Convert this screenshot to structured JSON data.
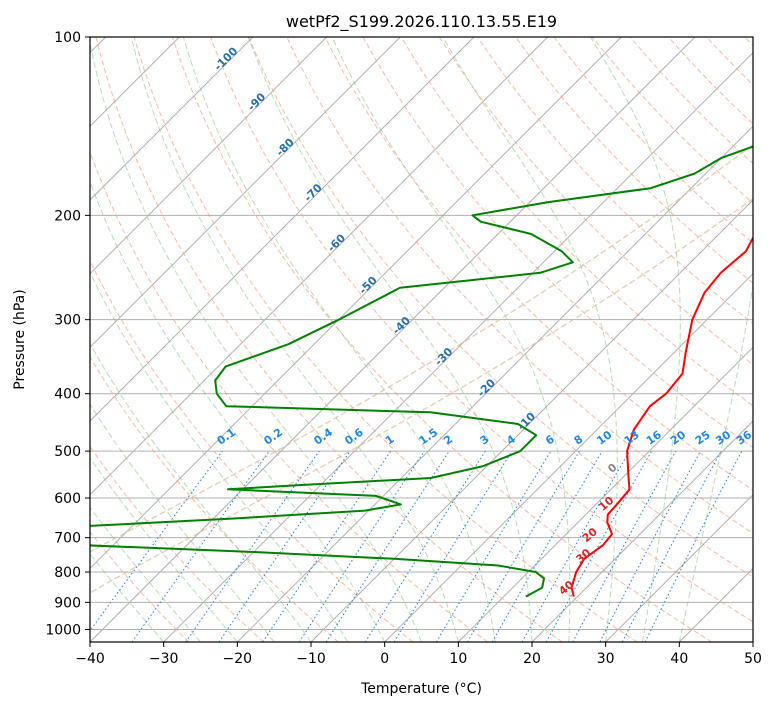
{
  "chart_data": {
    "type": "line",
    "title": "wetPf2_S199.2026.110.13.55.E19",
    "xlabel": "Temperature (°C)",
    "ylabel": "Pressure (hPa)",
    "xlim": [
      -40,
      50
    ],
    "ylim": [
      1050,
      100
    ],
    "y_scale": "log",
    "x_ticks": [
      -40,
      -30,
      -20,
      -10,
      0,
      10,
      20,
      30,
      40,
      50
    ],
    "x_tick_labels": [
      "−40",
      "−30",
      "−20",
      "−10",
      "0",
      "10",
      "20",
      "30",
      "40",
      "50"
    ],
    "y_ticks": [
      100,
      200,
      300,
      400,
      500,
      600,
      700,
      800,
      900,
      1000
    ],
    "y_tick_labels": [
      "100",
      "200",
      "300",
      "400",
      "500",
      "600",
      "700",
      "800",
      "900",
      "1000"
    ],
    "grid": true,
    "skew": true,
    "series": [
      {
        "color": "#ff0000",
        "points": [
          [
            880,
            19.5
          ],
          [
            850,
            18.0
          ],
          [
            800,
            16.5
          ],
          [
            760,
            15.8
          ],
          [
            720,
            16.5
          ],
          [
            690,
            16.2
          ],
          [
            660,
            14.0
          ],
          [
            640,
            13.0
          ],
          [
            610,
            12.8
          ],
          [
            580,
            12.5
          ],
          [
            550,
            10.5
          ],
          [
            500,
            7.0
          ],
          [
            460,
            5.0
          ],
          [
            420,
            4.0
          ],
          [
            400,
            4.5
          ],
          [
            370,
            4.0
          ],
          [
            340,
            1.5
          ],
          [
            300,
            -2.0
          ],
          [
            270,
            -4.0
          ],
          [
            250,
            -4.5
          ],
          [
            230,
            -4.0
          ],
          [
            210,
            -5.5
          ],
          [
            190,
            -8.0
          ],
          [
            170,
            -12.0
          ],
          [
            150,
            -15.5
          ],
          [
            130,
            -19.5
          ],
          [
            115,
            -22.5
          ],
          [
            100,
            -27.0
          ]
        ]
      },
      {
        "color": "#008000",
        "points": [
          [
            880,
            13.0
          ],
          [
            850,
            14.0
          ],
          [
            820,
            13.0
          ],
          [
            800,
            11.0
          ],
          [
            780,
            5.0
          ],
          [
            760,
            -10.0
          ],
          [
            740,
            -30.0
          ],
          [
            720,
            -55.0
          ],
          [
            700,
            -78.0
          ],
          [
            690,
            -90.0
          ],
          [
            680,
            -72.0
          ],
          [
            670,
            -57.0
          ],
          [
            650,
            -37.5
          ],
          [
            630,
            -20.5
          ],
          [
            615,
            -16.5
          ],
          [
            595,
            -21.0
          ],
          [
            580,
            -42.0
          ],
          [
            570,
            -32.0
          ],
          [
            555,
            -16.0
          ],
          [
            530,
            -10.5
          ],
          [
            500,
            -7.5
          ],
          [
            470,
            -7.5
          ],
          [
            450,
            -11.5
          ],
          [
            430,
            -25.0
          ],
          [
            420,
            -53.5
          ],
          [
            400,
            -56.5
          ],
          [
            380,
            -58.5
          ],
          [
            360,
            -59.0
          ],
          [
            330,
            -53.5
          ],
          [
            300,
            -50.0
          ],
          [
            265,
            -46.0
          ],
          [
            250,
            -29.0
          ],
          [
            240,
            -26.0
          ],
          [
            230,
            -29.0
          ],
          [
            215,
            -35.5
          ],
          [
            205,
            -44.0
          ],
          [
            200,
            -46.0
          ],
          [
            190,
            -37.5
          ],
          [
            180,
            -25.5
          ],
          [
            170,
            -21.5
          ],
          [
            160,
            -20.0
          ],
          [
            150,
            -16.0
          ],
          [
            140,
            -13.5
          ],
          [
            120,
            -13.5
          ],
          [
            110,
            -19.0
          ],
          [
            100,
            -25.0
          ]
        ]
      }
    ],
    "mixing_ratio_labels": [
      "0.1",
      "0.2",
      "0.4",
      "0.6",
      "1",
      "1.5",
      "2",
      "3",
      "4",
      "6",
      "8",
      "10",
      "13",
      "16",
      "20",
      "25",
      "30",
      "36"
    ],
    "dry_adiabat_labels": [
      "-100",
      "-90",
      "-80",
      "-70",
      "-60",
      "-50",
      "-40",
      "-30",
      "-20",
      "-10"
    ],
    "moist_adiabat_labels": [
      "0",
      "10",
      "20",
      "30",
      "40"
    ]
  }
}
